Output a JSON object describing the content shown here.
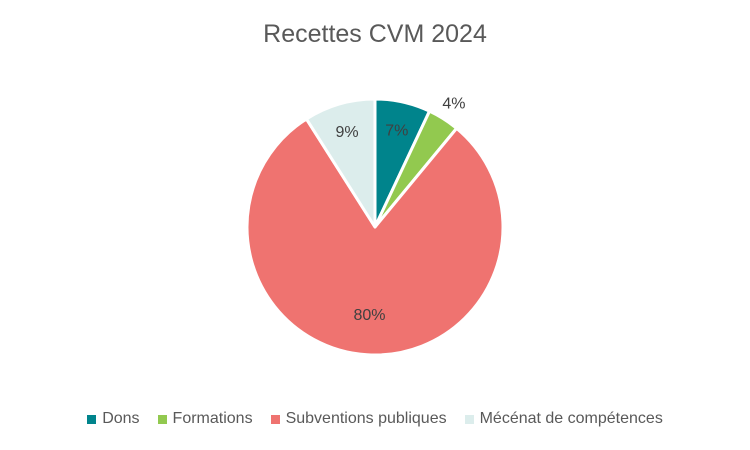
{
  "chart_data": {
    "type": "pie",
    "title": "Recettes CVM 2024",
    "categories": [
      "Dons",
      "Formations",
      "Subventions publiques",
      "Mécénat de compétences"
    ],
    "values": [
      7,
      4,
      80,
      9
    ],
    "data_labels": [
      "7%",
      "4%",
      "80%",
      "9%"
    ],
    "colors": [
      "#00848C",
      "#92C94F",
      "#EF7370",
      "#DCEDEC"
    ],
    "legend_position": "bottom",
    "start_angle_deg": 0,
    "direction": "clockwise"
  }
}
